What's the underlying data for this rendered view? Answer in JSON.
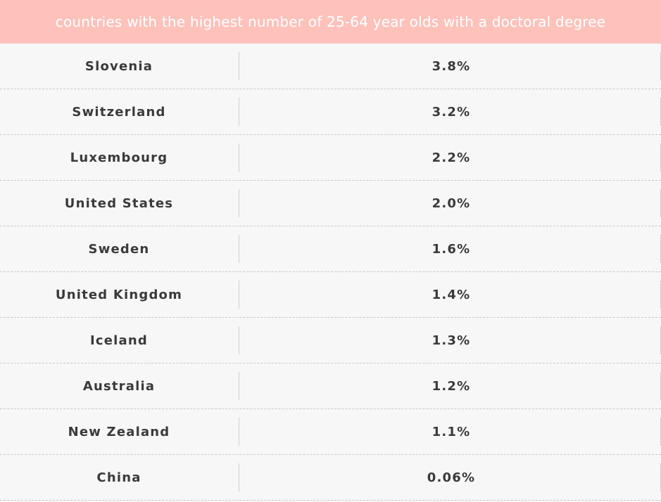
{
  "chart_data": {
    "type": "table",
    "title": "countries with the highest number of 25-64 year olds with a doctoral degree",
    "rows": [
      {
        "country": "Slovenia",
        "value": "3.8%"
      },
      {
        "country": "Switzerland",
        "value": "3.2%"
      },
      {
        "country": "Luxembourg",
        "value": "2.2%"
      },
      {
        "country": "United States",
        "value": "2.0%"
      },
      {
        "country": "Sweden",
        "value": "1.6%"
      },
      {
        "country": "United Kingdom",
        "value": "1.4%"
      },
      {
        "country": "Iceland",
        "value": "1.3%"
      },
      {
        "country": "Australia",
        "value": "1.2%"
      },
      {
        "country": "New Zealand",
        "value": "1.1%"
      },
      {
        "country": "China",
        "value": "0.06%"
      }
    ]
  },
  "colors": {
    "header_background": "#fec2bb",
    "header_text": "#ffffff",
    "body_background": "#f7f7f7",
    "cell_text": "#3a3a3a"
  }
}
